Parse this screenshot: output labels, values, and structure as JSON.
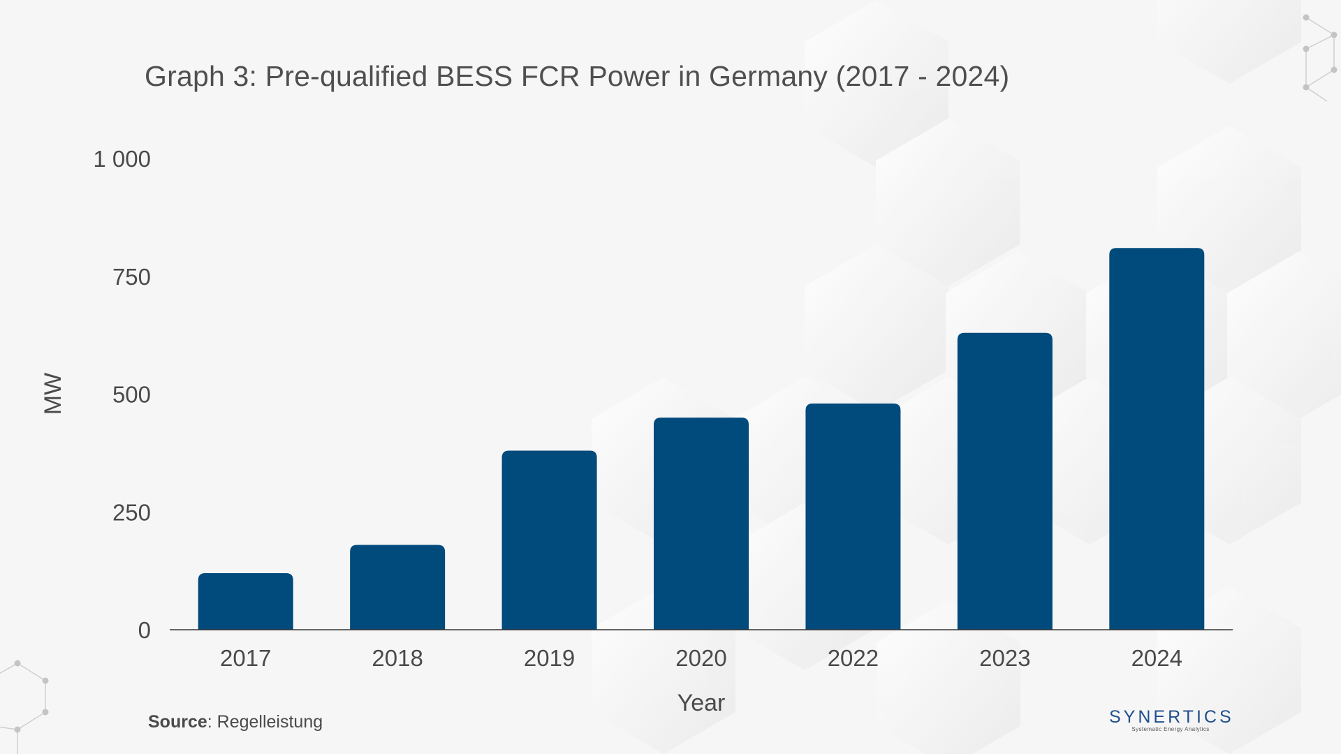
{
  "chart_data": {
    "type": "bar",
    "title": "Graph 3: Pre-qualified BESS FCR Power in Germany (2017 - 2024)",
    "xlabel": "Year",
    "ylabel": "MW",
    "categories": [
      "2017",
      "2018",
      "2019",
      "2020",
      "2022",
      "2023",
      "2024"
    ],
    "values": [
      120,
      180,
      380,
      450,
      480,
      630,
      810
    ],
    "ylim": [
      0,
      1000
    ],
    "yticks": [
      0,
      250,
      500,
      750,
      1000
    ],
    "ytick_labels": [
      "0",
      "250",
      "500",
      "750",
      "1 000"
    ],
    "grid": false,
    "bar_color": "#004a7c"
  },
  "source": {
    "label": "Source",
    "text": ": Regelleistung"
  },
  "logo": {
    "name": "SYNERTICS",
    "tagline": "Systematic Energy Analytics",
    "color": "#1f4e8c"
  }
}
